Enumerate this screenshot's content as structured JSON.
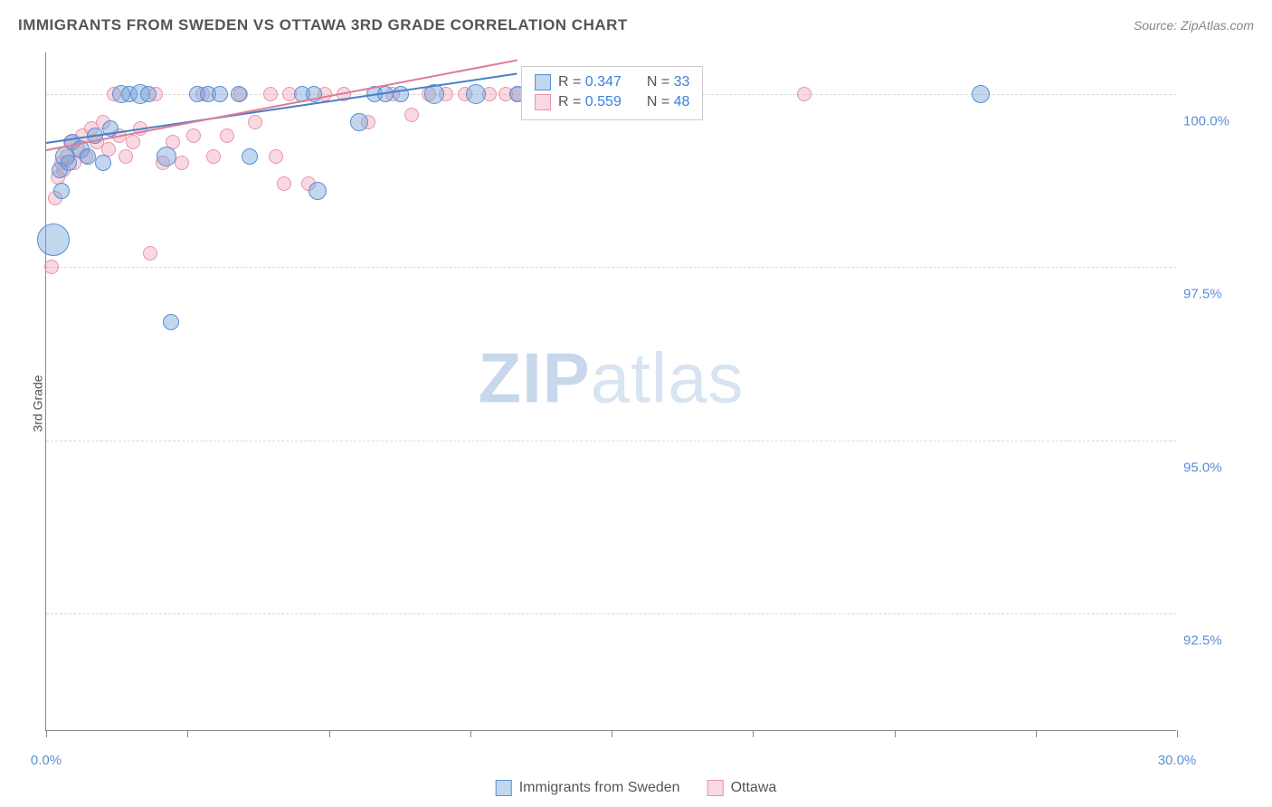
{
  "title": "IMMIGRANTS FROM SWEDEN VS OTTAWA 3RD GRADE CORRELATION CHART",
  "source": "Source: ZipAtlas.com",
  "y_axis_label": "3rd Grade",
  "watermark_zip": "ZIP",
  "watermark_atlas": "atlas",
  "chart": {
    "type": "scatter",
    "xlim": [
      0,
      30
    ],
    "ylim": [
      90.8,
      100.6
    ],
    "y_ticks": [
      92.5,
      95.0,
      97.5,
      100.0
    ],
    "y_tick_labels": [
      "92.5%",
      "95.0%",
      "97.5%",
      "100.0%"
    ],
    "x_ticks": [
      0,
      3.75,
      7.5,
      11.25,
      15,
      18.75,
      22.5,
      26.25,
      30
    ],
    "x_min_label": "0.0%",
    "x_max_label": "30.0%",
    "background_color": "#ffffff",
    "grid_color": "#d8d8d8",
    "series": [
      {
        "name": "Immigrants from Sweden",
        "color_fill": "rgba(120,165,215,0.45)",
        "color_stroke": "#5a8fd6",
        "class": "blue",
        "r_value": "0.347",
        "n_value": "33",
        "trend": {
          "x1": 0,
          "y1": 99.3,
          "x2": 12.5,
          "y2": 100.3
        },
        "points": [
          {
            "x": 0.2,
            "y": 97.9,
            "r": 18
          },
          {
            "x": 0.35,
            "y": 98.9,
            "r": 9
          },
          {
            "x": 0.4,
            "y": 98.6,
            "r": 9
          },
          {
            "x": 0.5,
            "y": 99.1,
            "r": 11
          },
          {
            "x": 0.6,
            "y": 99.0,
            "r": 9
          },
          {
            "x": 0.7,
            "y": 99.3,
            "r": 9
          },
          {
            "x": 0.9,
            "y": 99.2,
            "r": 10
          },
          {
            "x": 1.1,
            "y": 99.1,
            "r": 9
          },
          {
            "x": 1.3,
            "y": 99.4,
            "r": 9
          },
          {
            "x": 1.5,
            "y": 99.0,
            "r": 9
          },
          {
            "x": 1.7,
            "y": 99.5,
            "r": 9
          },
          {
            "x": 2.0,
            "y": 100.0,
            "r": 10
          },
          {
            "x": 2.2,
            "y": 100.0,
            "r": 9
          },
          {
            "x": 2.5,
            "y": 100.0,
            "r": 11
          },
          {
            "x": 2.7,
            "y": 100.0,
            "r": 9
          },
          {
            "x": 3.2,
            "y": 99.1,
            "r": 11
          },
          {
            "x": 3.3,
            "y": 96.7,
            "r": 9
          },
          {
            "x": 4.0,
            "y": 100.0,
            "r": 9
          },
          {
            "x": 4.3,
            "y": 100.0,
            "r": 9
          },
          {
            "x": 4.6,
            "y": 100.0,
            "r": 9
          },
          {
            "x": 5.1,
            "y": 100.0,
            "r": 9
          },
          {
            "x": 5.4,
            "y": 99.1,
            "r": 9
          },
          {
            "x": 6.8,
            "y": 100.0,
            "r": 9
          },
          {
            "x": 7.1,
            "y": 100.0,
            "r": 9
          },
          {
            "x": 7.2,
            "y": 98.6,
            "r": 10
          },
          {
            "x": 8.3,
            "y": 99.6,
            "r": 10
          },
          {
            "x": 8.7,
            "y": 100.0,
            "r": 9
          },
          {
            "x": 9.0,
            "y": 100.0,
            "r": 9
          },
          {
            "x": 9.4,
            "y": 100.0,
            "r": 9
          },
          {
            "x": 10.3,
            "y": 100.0,
            "r": 11
          },
          {
            "x": 11.4,
            "y": 100.0,
            "r": 11
          },
          {
            "x": 12.5,
            "y": 100.0,
            "r": 9
          },
          {
            "x": 24.8,
            "y": 100.0,
            "r": 10
          }
        ]
      },
      {
        "name": "Ottawa",
        "color_fill": "rgba(240,160,180,0.4)",
        "color_stroke": "#e895ab",
        "class": "pink",
        "r_value": "0.559",
        "n_value": "48",
        "trend": {
          "x1": 0,
          "y1": 99.2,
          "x2": 12.5,
          "y2": 100.5
        },
        "points": [
          {
            "x": 0.15,
            "y": 97.5,
            "r": 8
          },
          {
            "x": 0.25,
            "y": 98.5,
            "r": 8
          },
          {
            "x": 0.3,
            "y": 98.8,
            "r": 8
          },
          {
            "x": 0.4,
            "y": 99.0,
            "r": 8
          },
          {
            "x": 0.45,
            "y": 98.9,
            "r": 8
          },
          {
            "x": 0.55,
            "y": 99.1,
            "r": 8
          },
          {
            "x": 0.65,
            "y": 99.3,
            "r": 8
          },
          {
            "x": 0.75,
            "y": 99.0,
            "r": 8
          },
          {
            "x": 0.85,
            "y": 99.2,
            "r": 8
          },
          {
            "x": 0.95,
            "y": 99.4,
            "r": 8
          },
          {
            "x": 1.05,
            "y": 99.1,
            "r": 8
          },
          {
            "x": 1.2,
            "y": 99.5,
            "r": 8
          },
          {
            "x": 1.35,
            "y": 99.3,
            "r": 8
          },
          {
            "x": 1.5,
            "y": 99.6,
            "r": 8
          },
          {
            "x": 1.65,
            "y": 99.2,
            "r": 8
          },
          {
            "x": 1.8,
            "y": 100.0,
            "r": 8
          },
          {
            "x": 1.95,
            "y": 99.4,
            "r": 8
          },
          {
            "x": 2.1,
            "y": 99.1,
            "r": 8
          },
          {
            "x": 2.3,
            "y": 99.3,
            "r": 8
          },
          {
            "x": 2.5,
            "y": 99.5,
            "r": 8
          },
          {
            "x": 2.75,
            "y": 97.7,
            "r": 8
          },
          {
            "x": 2.9,
            "y": 100.0,
            "r": 8
          },
          {
            "x": 3.1,
            "y": 99.0,
            "r": 8
          },
          {
            "x": 3.35,
            "y": 99.3,
            "r": 8
          },
          {
            "x": 3.6,
            "y": 99.0,
            "r": 8
          },
          {
            "x": 3.9,
            "y": 99.4,
            "r": 8
          },
          {
            "x": 4.15,
            "y": 100.0,
            "r": 8
          },
          {
            "x": 4.45,
            "y": 99.1,
            "r": 8
          },
          {
            "x": 4.8,
            "y": 99.4,
            "r": 8
          },
          {
            "x": 5.15,
            "y": 100.0,
            "r": 8
          },
          {
            "x": 5.55,
            "y": 99.6,
            "r": 8
          },
          {
            "x": 5.95,
            "y": 100.0,
            "r": 8
          },
          {
            "x": 6.1,
            "y": 99.1,
            "r": 8
          },
          {
            "x": 6.3,
            "y": 98.7,
            "r": 8
          },
          {
            "x": 6.45,
            "y": 100.0,
            "r": 8
          },
          {
            "x": 6.95,
            "y": 98.7,
            "r": 8
          },
          {
            "x": 7.4,
            "y": 100.0,
            "r": 8
          },
          {
            "x": 7.9,
            "y": 100.0,
            "r": 8
          },
          {
            "x": 8.55,
            "y": 99.6,
            "r": 8
          },
          {
            "x": 9.2,
            "y": 100.0,
            "r": 8
          },
          {
            "x": 9.7,
            "y": 99.7,
            "r": 8
          },
          {
            "x": 10.15,
            "y": 100.0,
            "r": 8
          },
          {
            "x": 10.6,
            "y": 100.0,
            "r": 8
          },
          {
            "x": 11.1,
            "y": 100.0,
            "r": 8
          },
          {
            "x": 11.75,
            "y": 100.0,
            "r": 8
          },
          {
            "x": 12.2,
            "y": 100.0,
            "r": 8
          },
          {
            "x": 12.5,
            "y": 100.0,
            "r": 8
          },
          {
            "x": 20.1,
            "y": 100.0,
            "r": 8
          }
        ]
      }
    ]
  },
  "legend_labels": {
    "r_prefix": "R = ",
    "n_prefix": "N = "
  }
}
